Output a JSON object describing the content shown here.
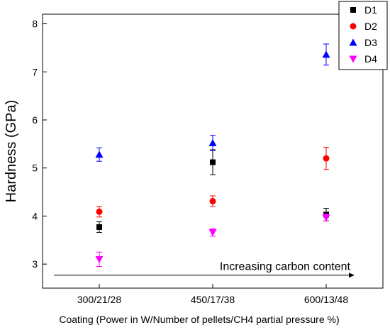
{
  "chart_data": {
    "type": "scatter",
    "title": "",
    "xlabel": "Coating (Power in W/Number of pellets/CH4 partial pressure %)",
    "ylabel": "Hardness (GPa)",
    "categories": [
      "300/21/28",
      "450/17/38",
      "600/13/48"
    ],
    "xlim": [
      0.5,
      3.5
    ],
    "ylim": [
      2.5,
      8.2
    ],
    "yticks": [
      3,
      4,
      5,
      6,
      7,
      8
    ],
    "grid": false,
    "legend_position": "top-right",
    "series": [
      {
        "name": "D1",
        "marker": "square",
        "color": "#000000",
        "values": [
          3.77,
          5.12,
          4.03
        ],
        "errors": [
          0.11,
          0.26,
          0.13
        ]
      },
      {
        "name": "D2",
        "marker": "circle",
        "color": "#ff0000",
        "values": [
          4.09,
          4.31,
          5.2
        ],
        "errors": [
          0.11,
          0.11,
          0.23
        ]
      },
      {
        "name": "D3",
        "marker": "triangle-up",
        "color": "#0000ff",
        "values": [
          5.28,
          5.52,
          7.36
        ],
        "errors": [
          0.14,
          0.16,
          0.22
        ]
      },
      {
        "name": "D4",
        "marker": "triangle-down",
        "color": "#ff00ff",
        "values": [
          3.1,
          3.66,
          3.97
        ],
        "errors": [
          0.15,
          0.08,
          0.07
        ]
      }
    ],
    "annotations": [
      {
        "text": "Increasing carbon content",
        "type": "arrow",
        "from_x": 0.6,
        "to_x": 3.25,
        "y": 2.77
      }
    ]
  }
}
